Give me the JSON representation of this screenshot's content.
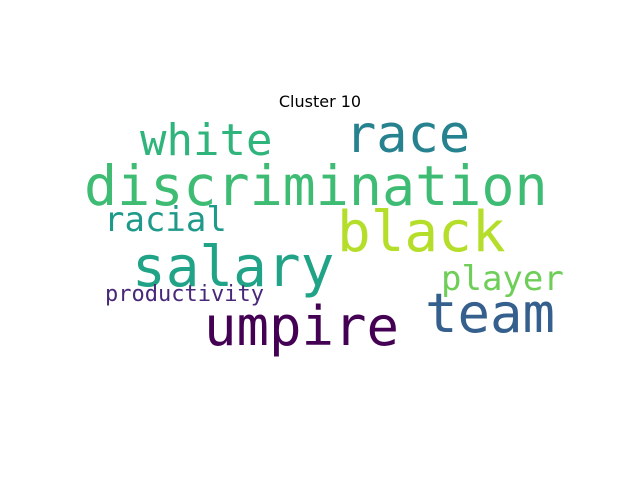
{
  "chart_data": {
    "type": "table",
    "title": "Cluster 10",
    "words": [
      {
        "text": "discrimination",
        "color": "#3fbc73"
      },
      {
        "text": "race",
        "color": "#26828e"
      },
      {
        "text": "black",
        "color": "#b5de2b"
      },
      {
        "text": "salary",
        "color": "#20a386"
      },
      {
        "text": "team",
        "color": "#355f8d"
      },
      {
        "text": "umpire",
        "color": "#440154"
      },
      {
        "text": "white",
        "color": "#2fb47c"
      },
      {
        "text": "racial",
        "color": "#1f9a8a"
      },
      {
        "text": "player",
        "color": "#6ece58"
      },
      {
        "text": "productivity",
        "color": "#482878"
      }
    ]
  }
}
